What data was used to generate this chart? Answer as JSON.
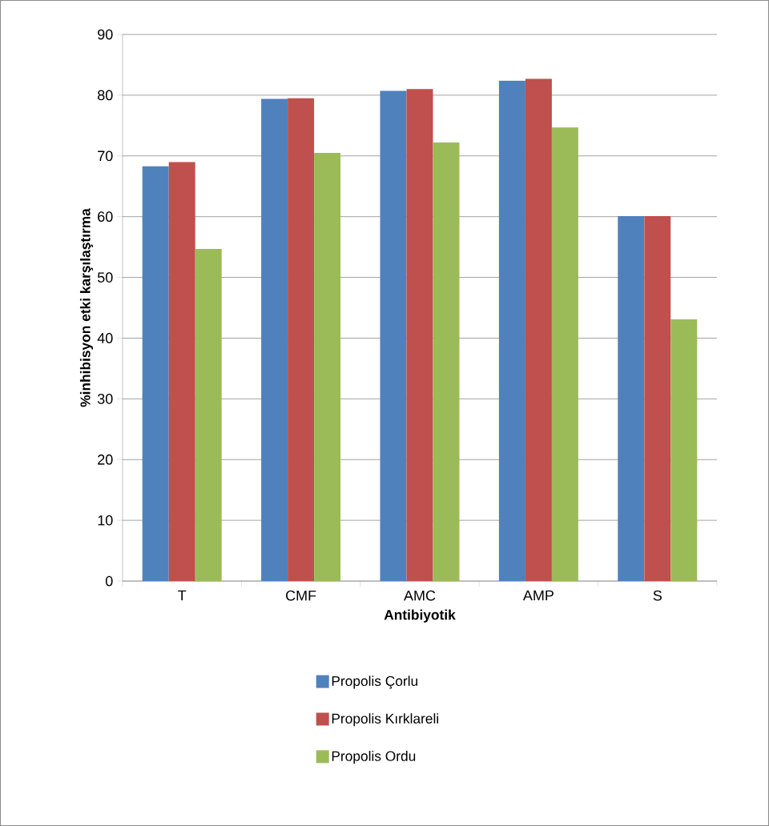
{
  "chart_data": {
    "type": "bar",
    "xlabel": "Antibiyotik",
    "ylabel": "%inhibisyon etki  karşılaştırma",
    "categories": [
      "T",
      "CMF",
      "AMC",
      "AMP",
      "S"
    ],
    "series": [
      {
        "name": "Propolis Çorlu",
        "color": "#4f81bd",
        "values": [
          68.3,
          79.4,
          80.7,
          82.4,
          60.1
        ]
      },
      {
        "name": "Propolis Kırklareli",
        "color": "#c0504d",
        "values": [
          69.0,
          79.5,
          81.0,
          82.7,
          60.1
        ]
      },
      {
        "name": "Propolis Ordu",
        "color": "#9bbb59",
        "values": [
          54.7,
          70.5,
          72.2,
          74.7,
          43.1
        ]
      }
    ],
    "ylim": [
      0,
      90
    ],
    "yticks": [
      0,
      10,
      20,
      30,
      40,
      50,
      60,
      70,
      80,
      90
    ],
    "grid": "y",
    "legend": "bottom"
  }
}
